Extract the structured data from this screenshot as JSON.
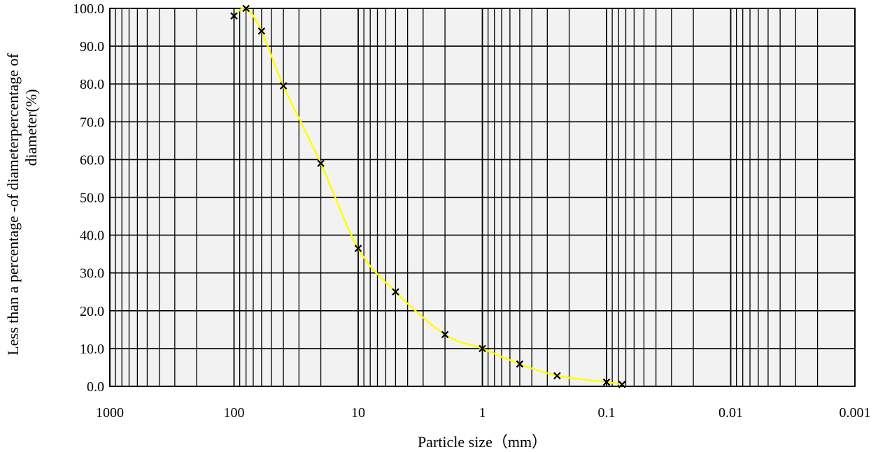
{
  "chart_data": {
    "type": "scatter",
    "title": "",
    "xlabel": "Particle size（mm）",
    "ylabel_lines": [
      "Less than a percentage -of diameterpercentage of",
      "diameter(%)"
    ],
    "x_scale": "log",
    "x_reversed": true,
    "xlim": [
      1000,
      0.001
    ],
    "ylim": [
      0,
      100
    ],
    "x_ticks": [
      "1000",
      "100",
      "10",
      "1",
      "0.1",
      "0.01",
      "0.001"
    ],
    "y_ticks": [
      "0.0",
      "10.0",
      "20.0",
      "30.0",
      "40.0",
      "50.0",
      "60.0",
      "70.0",
      "80.0",
      "90.0",
      "100.0"
    ],
    "grid": true,
    "legend": "none",
    "series": [
      {
        "marker": "x",
        "line_color": "#ffff00",
        "x": [
          80,
          100,
          60,
          40,
          20,
          10,
          5,
          2,
          1,
          0.5,
          0.25,
          0.1,
          0.075
        ],
        "y": [
          100.0,
          98.0,
          94.0,
          79.5,
          59.0,
          36.5,
          25.0,
          13.7,
          10.0,
          5.9,
          2.8,
          1.1,
          0.5
        ]
      }
    ],
    "colors": {
      "plot_background": "#f2f2f2",
      "grid": "#000000",
      "curve": "#ffff00",
      "marker": "#000000"
    }
  }
}
